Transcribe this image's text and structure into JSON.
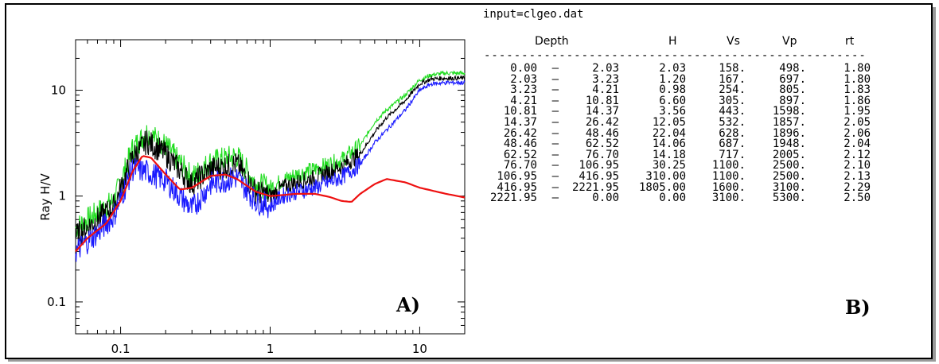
{
  "colors": {
    "black": "#000000",
    "green": "#22dd22",
    "blue": "#1a1aff",
    "red": "#ee1111"
  },
  "chart_data": {
    "type": "line",
    "ylabel": "Ray H/V",
    "xscale": "log",
    "yscale": "log",
    "xlim": [
      0.05,
      20
    ],
    "ylim": [
      0.05,
      30
    ],
    "x_ticks": [
      "0.1",
      "1",
      "10"
    ],
    "y_ticks": [
      "0.1",
      "1",
      "10"
    ],
    "panel_label": "A)",
    "series": [
      {
        "color": "green",
        "x": [
          0.05,
          0.07,
          0.09,
          0.12,
          0.15,
          0.2,
          0.3,
          0.4,
          0.6,
          0.8,
          1,
          1.2,
          1.5,
          2,
          3,
          4,
          5,
          6,
          8,
          10,
          12,
          15,
          20
        ],
        "y": [
          0.5,
          0.7,
          0.9,
          2.8,
          4.0,
          3.0,
          1.5,
          2.1,
          2.4,
          1.3,
          1.2,
          1.4,
          1.6,
          1.8,
          2.2,
          3.0,
          5.0,
          6.5,
          9.0,
          12.5,
          14.0,
          14.5,
          14.5
        ]
      },
      {
        "color": "black",
        "x": [
          0.05,
          0.07,
          0.09,
          0.12,
          0.15,
          0.2,
          0.3,
          0.4,
          0.6,
          0.8,
          1,
          1.2,
          1.5,
          2,
          3,
          4,
          5,
          6,
          8,
          10,
          12,
          15,
          20
        ],
        "y": [
          0.42,
          0.6,
          0.8,
          2.3,
          3.3,
          2.5,
          1.3,
          1.8,
          2.0,
          1.1,
          1.0,
          1.2,
          1.35,
          1.5,
          1.9,
          2.5,
          4.0,
          5.5,
          8.0,
          11.5,
          12.8,
          13.0,
          13.0
        ]
      },
      {
        "color": "blue",
        "x": [
          0.05,
          0.07,
          0.09,
          0.12,
          0.15,
          0.2,
          0.3,
          0.4,
          0.6,
          0.8,
          1,
          1.2,
          1.5,
          2,
          3,
          4,
          5,
          6,
          8,
          10,
          12,
          15,
          20
        ],
        "y": [
          0.3,
          0.45,
          0.65,
          1.8,
          1.7,
          1.4,
          0.75,
          1.3,
          1.5,
          0.9,
          0.8,
          1.0,
          1.1,
          1.2,
          1.5,
          2.0,
          3.2,
          4.2,
          6.5,
          10.0,
          11.5,
          11.8,
          11.8
        ]
      },
      {
        "color": "red",
        "x": [
          0.05,
          0.06,
          0.08,
          0.1,
          0.12,
          0.14,
          0.16,
          0.2,
          0.25,
          0.3,
          0.4,
          0.5,
          0.6,
          0.8,
          1,
          1.5,
          2,
          2.5,
          3,
          3.5,
          4,
          5,
          6,
          8,
          10,
          15,
          20
        ],
        "y": [
          0.3,
          0.4,
          0.55,
          0.9,
          1.7,
          2.4,
          2.3,
          1.6,
          1.15,
          1.2,
          1.55,
          1.6,
          1.45,
          1.1,
          1.0,
          1.05,
          1.05,
          0.98,
          0.9,
          0.88,
          1.05,
          1.3,
          1.45,
          1.35,
          1.2,
          1.05,
          0.97
        ]
      }
    ]
  },
  "table": {
    "input_line": "input=clgeo.dat",
    "headers": {
      "depth": "Depth",
      "h": "H",
      "vs": "Vs",
      "vp": "Vp",
      "rt": "rt"
    },
    "dashes": "---------------------------------------------------",
    "rows": [
      {
        "d1": "0.00",
        "d2": "2.03",
        "h": "2.03",
        "vs": "158.",
        "vp": "498.",
        "rt": "1.80"
      },
      {
        "d1": "2.03",
        "d2": "3.23",
        "h": "1.20",
        "vs": "167.",
        "vp": "697.",
        "rt": "1.80"
      },
      {
        "d1": "3.23",
        "d2": "4.21",
        "h": "0.98",
        "vs": "254.",
        "vp": "805.",
        "rt": "1.83"
      },
      {
        "d1": "4.21",
        "d2": "10.81",
        "h": "6.60",
        "vs": "305.",
        "vp": "897.",
        "rt": "1.86"
      },
      {
        "d1": "10.81",
        "d2": "14.37",
        "h": "3.56",
        "vs": "443.",
        "vp": "1598.",
        "rt": "1.95"
      },
      {
        "d1": "14.37",
        "d2": "26.42",
        "h": "12.05",
        "vs": "532.",
        "vp": "1857.",
        "rt": "2.05"
      },
      {
        "d1": "26.42",
        "d2": "48.46",
        "h": "22.04",
        "vs": "628.",
        "vp": "1896.",
        "rt": "2.06"
      },
      {
        "d1": "48.46",
        "d2": "62.52",
        "h": "14.06",
        "vs": "687.",
        "vp": "1948.",
        "rt": "2.04"
      },
      {
        "d1": "62.52",
        "d2": "76.70",
        "h": "14.18",
        "vs": "717.",
        "vp": "2005.",
        "rt": "2.12"
      },
      {
        "d1": "76.70",
        "d2": "106.95",
        "h": "30.25",
        "vs": "1100.",
        "vp": "2500.",
        "rt": "2.10"
      },
      {
        "d1": "106.95",
        "d2": "416.95",
        "h": "310.00",
        "vs": "1100.",
        "vp": "2500.",
        "rt": "2.13"
      },
      {
        "d1": "416.95",
        "d2": "2221.95",
        "h": "1805.00",
        "vs": "1600.",
        "vp": "3100.",
        "rt": "2.29"
      },
      {
        "d1": "2221.95",
        "d2": "0.00",
        "h": "0.00",
        "vs": "3100.",
        "vp": "5300.",
        "rt": "2.50"
      }
    ],
    "panel_label": "B)"
  }
}
